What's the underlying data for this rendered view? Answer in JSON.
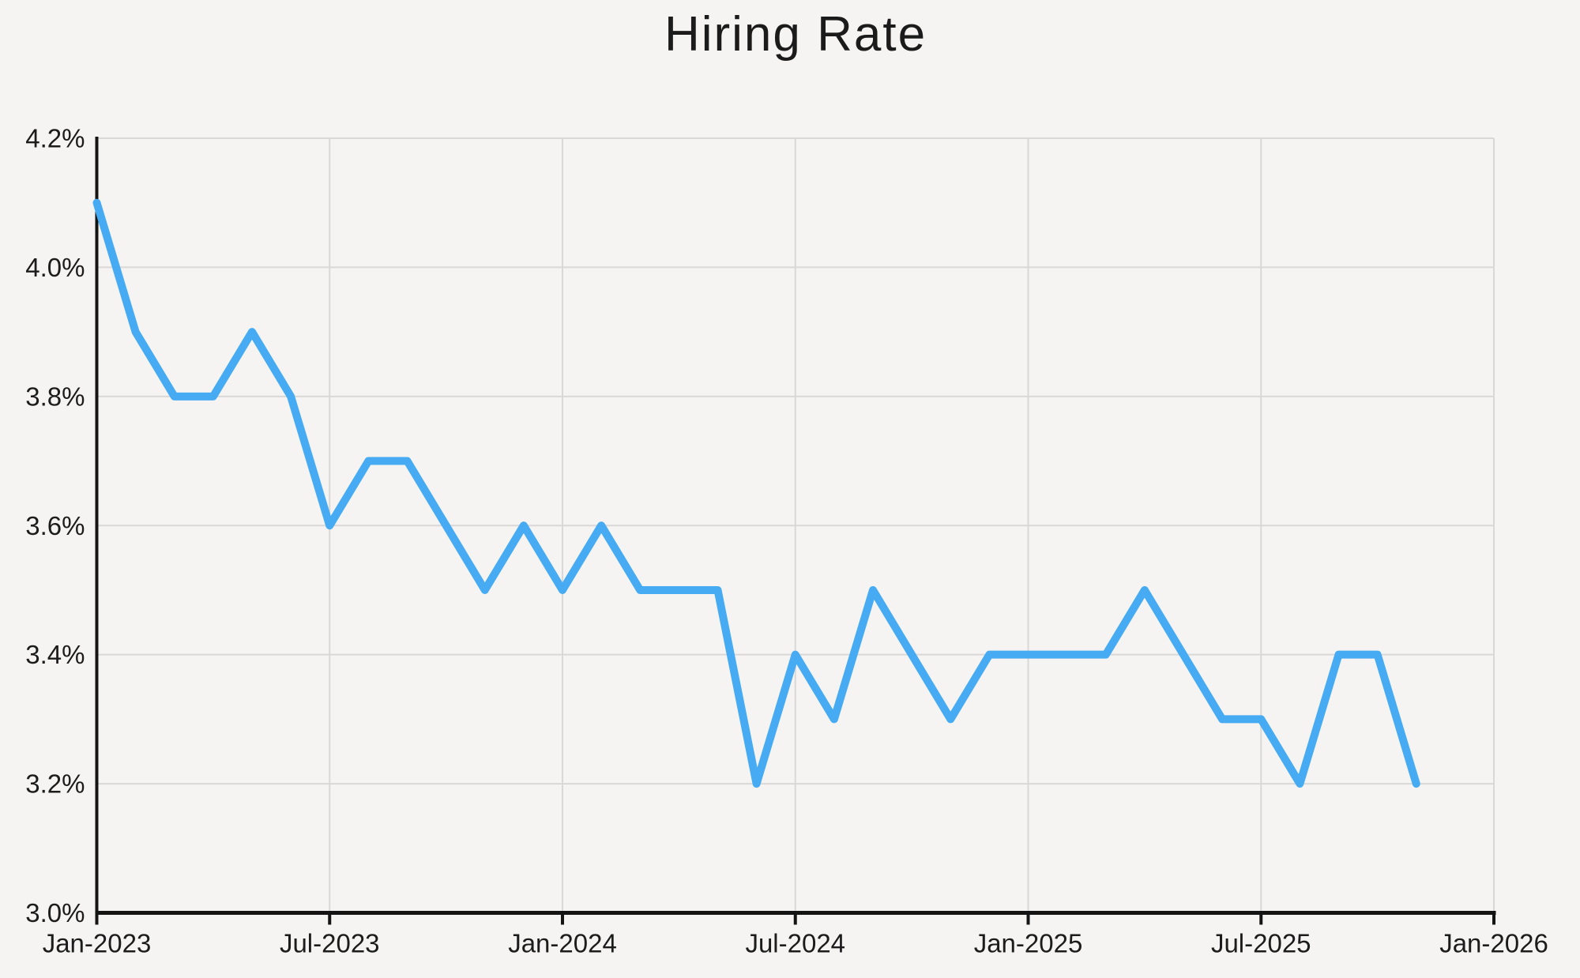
{
  "chart_data": {
    "type": "line",
    "title": "Hiring Rate",
    "series_name": "Hiring Rate",
    "line_color": "#46abf2",
    "grid": true,
    "legend": false,
    "ylim": [
      3.0,
      4.2
    ],
    "x_range_months": 36,
    "x": [
      "Jan-2023",
      "Feb-2023",
      "Mar-2023",
      "Apr-2023",
      "May-2023",
      "Jun-2023",
      "Jul-2023",
      "Aug-2023",
      "Sep-2023",
      "Oct-2023",
      "Nov-2023",
      "Dec-2023",
      "Jan-2024",
      "Feb-2024",
      "Mar-2024",
      "Apr-2024",
      "May-2024",
      "Jun-2024",
      "Jul-2024",
      "Aug-2024",
      "Sep-2024",
      "Oct-2024",
      "Nov-2024",
      "Dec-2024",
      "Jan-2025",
      "Feb-2025",
      "Mar-2025",
      "Apr-2025",
      "May-2025",
      "Jun-2025",
      "Jul-2025",
      "Aug-2025",
      "Sep-2025",
      "Oct-2025",
      "Nov-2025"
    ],
    "values": [
      4.1,
      3.9,
      3.8,
      3.8,
      3.9,
      3.8,
      3.6,
      3.7,
      3.7,
      3.6,
      3.5,
      3.6,
      3.5,
      3.6,
      3.5,
      3.5,
      3.5,
      3.2,
      3.4,
      3.3,
      3.5,
      3.4,
      3.3,
      3.4,
      3.4,
      3.4,
      3.4,
      3.5,
      3.4,
      3.3,
      3.3,
      3.2,
      3.4,
      3.4,
      3.2
    ],
    "y_ticks": [
      {
        "value": 3.0,
        "label": "3.0%"
      },
      {
        "value": 3.2,
        "label": "3.2%"
      },
      {
        "value": 3.4,
        "label": "3.4%"
      },
      {
        "value": 3.6,
        "label": "3.6%"
      },
      {
        "value": 3.8,
        "label": "3.8%"
      },
      {
        "value": 4.0,
        "label": "4.0%"
      },
      {
        "value": 4.2,
        "label": "4.2%"
      }
    ],
    "x_ticks": [
      {
        "month_index": 0,
        "label": "Jan-2023"
      },
      {
        "month_index": 6,
        "label": "Jul-2023"
      },
      {
        "month_index": 12,
        "label": "Jan-2024"
      },
      {
        "month_index": 18,
        "label": "Jul-2024"
      },
      {
        "month_index": 24,
        "label": "Jan-2025"
      },
      {
        "month_index": 30,
        "label": "Jul-2025"
      },
      {
        "month_index": 36,
        "label": "Jan-2026"
      }
    ],
    "colors": {
      "background": "#f5f4f2",
      "grid": "#d9d8d6",
      "axis": "#141414",
      "text": "#1c1c1c"
    }
  }
}
